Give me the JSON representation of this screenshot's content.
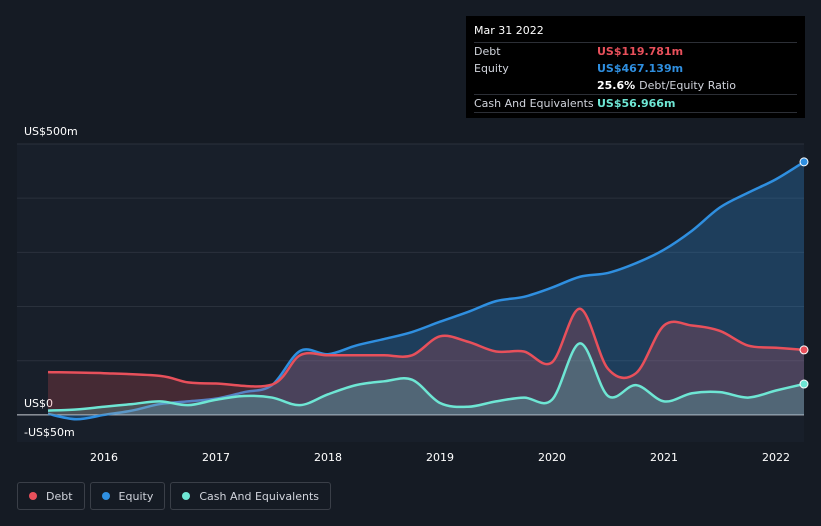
{
  "chart_data": {
    "type": "area",
    "title": "",
    "ylabel": "",
    "xlabel": "",
    "ylim": [
      -50,
      500
    ],
    "y_ticks": [
      {
        "value": 500,
        "label": "US$500m"
      },
      {
        "value": 0,
        "label": "US$0"
      },
      {
        "value": -50,
        "label": "-US$50m"
      }
    ],
    "x_range": [
      2015.5,
      2022.25
    ],
    "x_ticks": [
      {
        "value": 2016,
        "label": "2016"
      },
      {
        "value": 2017,
        "label": "2017"
      },
      {
        "value": 2018,
        "label": "2018"
      },
      {
        "value": 2019,
        "label": "2019"
      },
      {
        "value": 2020,
        "label": "2020"
      },
      {
        "value": 2021,
        "label": "2021"
      },
      {
        "value": 2022,
        "label": "2022"
      }
    ],
    "grid": true,
    "legend_position": "bottom-left",
    "series": [
      {
        "name": "Debt",
        "color": "#e8505b",
        "x": [
          2015.5,
          2016.0,
          2016.5,
          2016.75,
          2017.0,
          2017.5,
          2017.75,
          2018.0,
          2018.25,
          2018.5,
          2018.75,
          2019.0,
          2019.25,
          2019.5,
          2019.75,
          2020.0,
          2020.25,
          2020.5,
          2020.75,
          2021.0,
          2021.25,
          2021.5,
          2021.75,
          2022.0,
          2022.25
        ],
        "values": [
          79,
          77,
          72,
          60,
          58,
          56,
          110,
          110,
          110,
          110,
          110,
          145,
          135,
          117,
          117,
          97,
          196,
          85,
          77,
          165,
          165,
          155,
          128,
          124,
          120
        ]
      },
      {
        "name": "Equity",
        "color": "#2f8fe0",
        "x": [
          2015.5,
          2015.75,
          2016.0,
          2016.25,
          2016.5,
          2016.75,
          2017.0,
          2017.25,
          2017.5,
          2017.75,
          2018.0,
          2018.25,
          2018.5,
          2018.75,
          2019.0,
          2019.25,
          2019.5,
          2019.75,
          2020.0,
          2020.25,
          2020.5,
          2020.75,
          2021.0,
          2021.25,
          2021.5,
          2021.75,
          2022.0,
          2022.25
        ],
        "values": [
          2,
          -8,
          0,
          8,
          20,
          25,
          30,
          42,
          55,
          118,
          112,
          128,
          140,
          153,
          172,
          190,
          210,
          218,
          235,
          255,
          262,
          280,
          305,
          340,
          383,
          410,
          435,
          467
        ]
      },
      {
        "name": "Cash And Equivalents",
        "color": "#6ee6d4",
        "x": [
          2015.5,
          2015.75,
          2016.0,
          2016.25,
          2016.5,
          2016.75,
          2017.0,
          2017.25,
          2017.5,
          2017.75,
          2018.0,
          2018.25,
          2018.5,
          2018.75,
          2019.0,
          2019.25,
          2019.5,
          2019.75,
          2020.0,
          2020.25,
          2020.5,
          2020.75,
          2021.0,
          2021.25,
          2021.5,
          2021.75,
          2022.0,
          2022.25
        ],
        "values": [
          8,
          10,
          15,
          20,
          25,
          18,
          28,
          35,
          32,
          18,
          38,
          55,
          62,
          65,
          22,
          15,
          25,
          32,
          28,
          132,
          35,
          55,
          25,
          40,
          42,
          32,
          45,
          57
        ]
      }
    ],
    "end_markers": [
      "Debt",
      "Equity",
      "Cash And Equivalents"
    ]
  },
  "tooltip": {
    "date": "Mar 31 2022",
    "rows": [
      {
        "label": "Debt",
        "value": "US$119.781m",
        "color": "#e8505b",
        "suffix": ""
      },
      {
        "label": "Equity",
        "value": "US$467.139m",
        "color": "#2f8fe0",
        "suffix": ""
      },
      {
        "label": "",
        "value": "25.6%",
        "color": "#ffffff",
        "suffix": "Debt/Equity Ratio"
      },
      {
        "label": "Cash And Equivalents",
        "value": "US$56.966m",
        "color": "#6ee6d4",
        "suffix": ""
      }
    ]
  },
  "legend": [
    {
      "label": "Debt",
      "color": "#e8505b"
    },
    {
      "label": "Equity",
      "color": "#2f8fe0"
    },
    {
      "label": "Cash And Equivalents",
      "color": "#6ee6d4"
    }
  ]
}
